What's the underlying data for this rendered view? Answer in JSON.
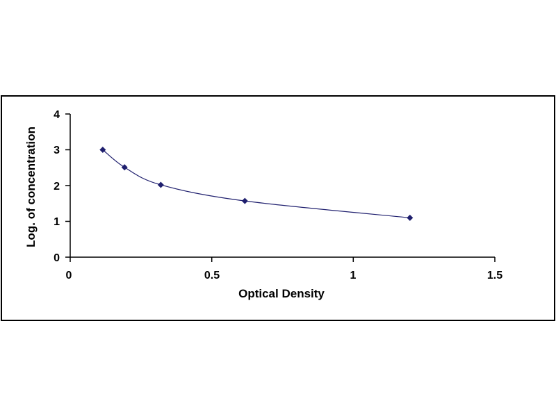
{
  "chart_data": {
    "type": "scatter",
    "title": "",
    "xlabel": "Optical Density",
    "ylabel": "Log. of concentration",
    "xlim": [
      0,
      1.5
    ],
    "ylim": [
      0,
      4
    ],
    "x_ticks": [
      "0",
      "0.5",
      "1",
      "1.5"
    ],
    "y_ticks": [
      "0",
      "1",
      "2",
      "3",
      "4"
    ],
    "grid": false,
    "legend": "none",
    "series": [
      {
        "marker": "diamond",
        "trendline": "smooth curve",
        "points": [
          {
            "x": 0.115,
            "y": 3.0
          },
          {
            "x": 0.192,
            "y": 2.51
          },
          {
            "x": 0.32,
            "y": 2.02
          },
          {
            "x": 0.617,
            "y": 1.57
          },
          {
            "x": 1.2,
            "y": 1.1
          }
        ]
      }
    ],
    "colors": {
      "marker": "#1f1f6e",
      "curve": "#1f1f6e",
      "axis": "#000000"
    }
  }
}
